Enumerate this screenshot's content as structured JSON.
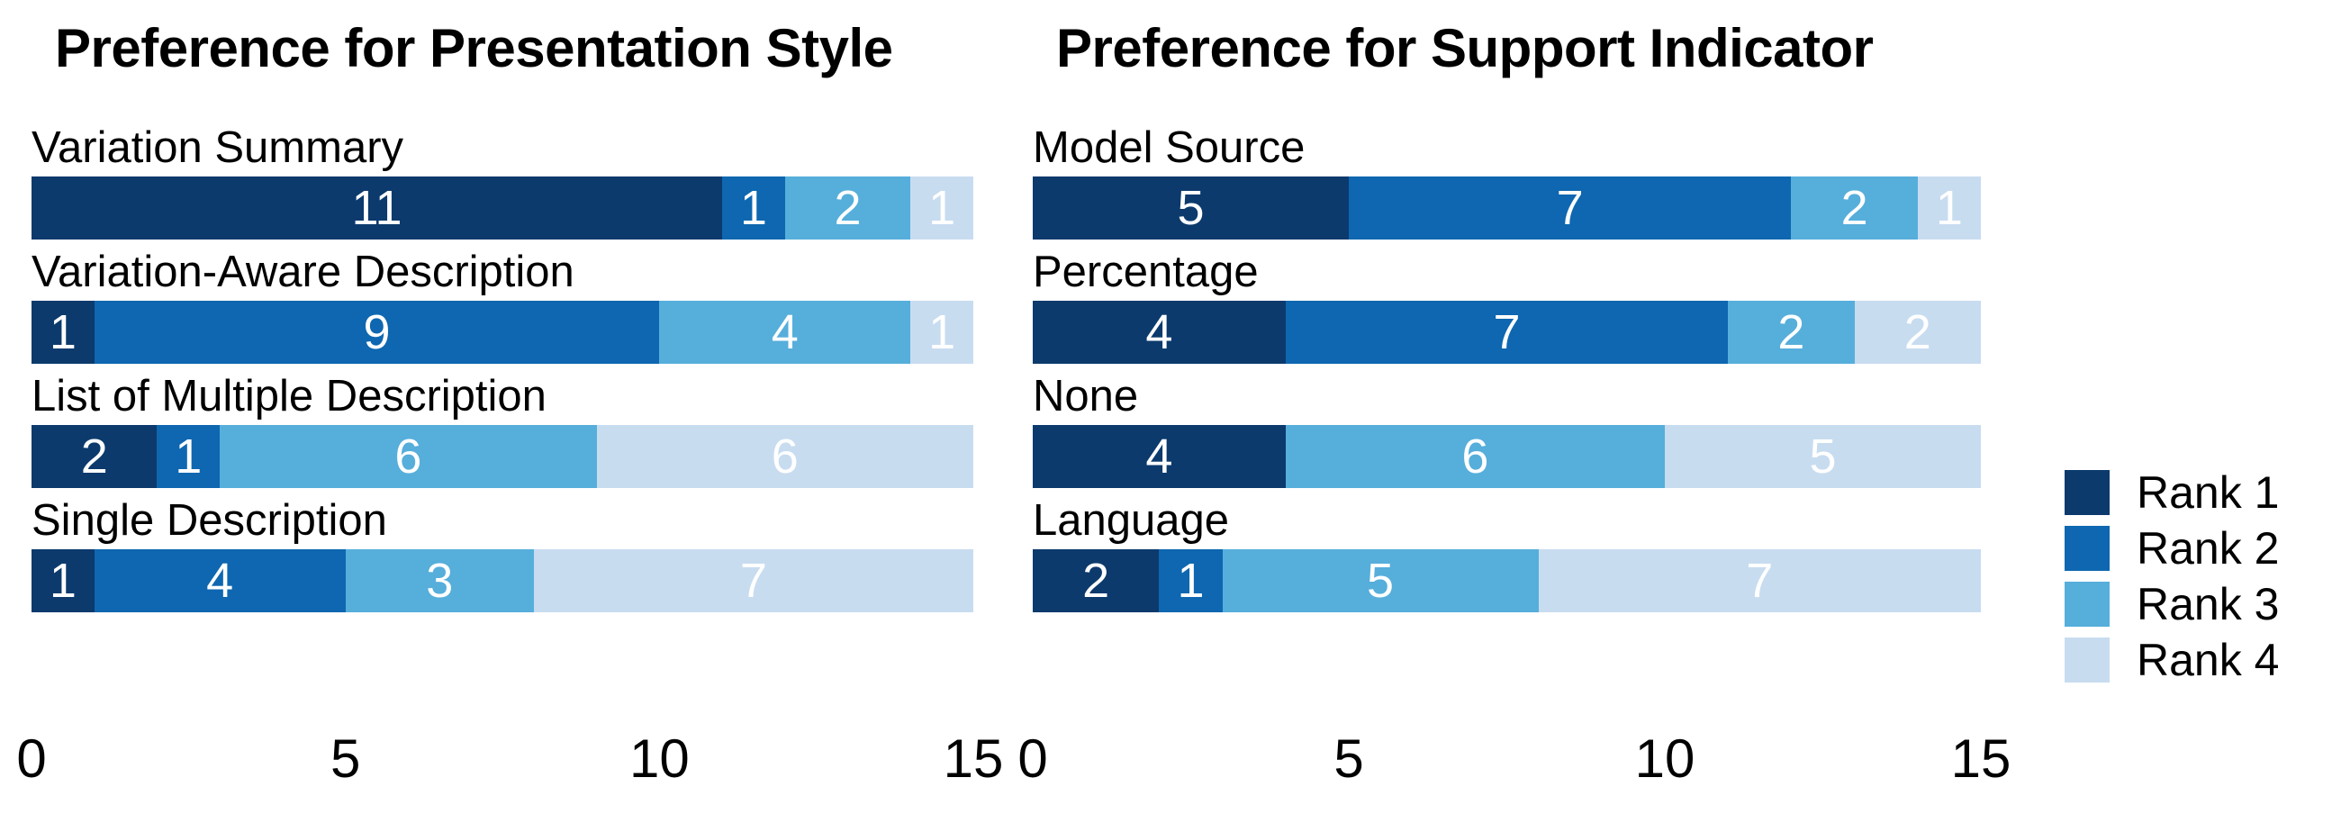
{
  "chart_data": [
    {
      "type": "bar",
      "variant": "horizontal-stacked",
      "title": "Preference for Presentation Style",
      "categories": [
        "Variation Summary",
        "Variation-Aware Description",
        "List of Multiple Description",
        "Single Description"
      ],
      "series": [
        {
          "name": "Rank 1",
          "values": [
            11,
            1,
            2,
            1
          ]
        },
        {
          "name": "Rank 2",
          "values": [
            1,
            9,
            1,
            4
          ]
        },
        {
          "name": "Rank 3",
          "values": [
            2,
            4,
            6,
            3
          ]
        },
        {
          "name": "Rank 4",
          "values": [
            1,
            1,
            6,
            7
          ]
        }
      ],
      "xlim": [
        0,
        15
      ],
      "x_ticks": [
        0,
        5,
        10,
        15
      ],
      "grid": false,
      "bar_labels_shown": true
    },
    {
      "type": "bar",
      "variant": "horizontal-stacked",
      "title": "Preference for Support Indicator",
      "categories": [
        "Model Source",
        "Percentage",
        "None",
        "Language"
      ],
      "series": [
        {
          "name": "Rank 1",
          "values": [
            5,
            4,
            4,
            2
          ]
        },
        {
          "name": "Rank 2",
          "values": [
            7,
            7,
            0,
            1
          ]
        },
        {
          "name": "Rank 3",
          "values": [
            2,
            2,
            6,
            5
          ]
        },
        {
          "name": "Rank 4",
          "values": [
            1,
            2,
            5,
            7
          ]
        }
      ],
      "xlim": [
        0,
        15
      ],
      "x_ticks": [
        0,
        5,
        10,
        15
      ],
      "grid": false,
      "bar_labels_shown": true
    }
  ],
  "legend": {
    "position": "right",
    "items": [
      {
        "label": "Rank 1",
        "color": "#0C3A6D"
      },
      {
        "label": "Rank 2",
        "color": "#0E67B0"
      },
      {
        "label": "Rank 3",
        "color": "#56AEDB"
      },
      {
        "label": "Rank 4",
        "color": "#C8DCF0"
      }
    ]
  },
  "colors": {
    "background": "#FFFFFF",
    "text": "#000000",
    "bar_value_text": "#FFFFFF"
  }
}
